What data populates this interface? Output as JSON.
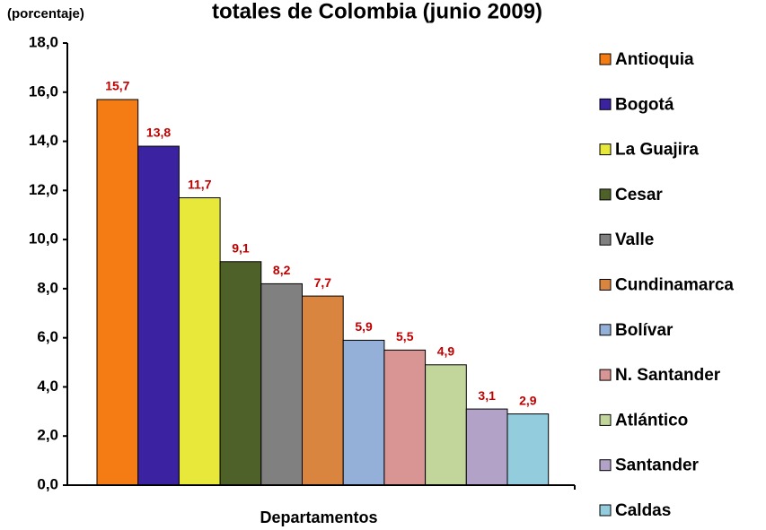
{
  "chart_data": {
    "type": "bar",
    "title": "totales de Colombia (junio 2009)",
    "y_label": "(porcentaje)",
    "x_label": "Departamentos",
    "categories": [
      "Antioquia",
      "Bogotá",
      "La Guajira",
      "Cesar",
      "Valle",
      "Cundinamarca",
      "Bolívar",
      "N. Santander",
      "Atlántico",
      "Santander",
      "Caldas"
    ],
    "values": [
      15.7,
      13.8,
      11.7,
      9.1,
      8.2,
      7.7,
      5.9,
      5.5,
      4.9,
      3.1,
      2.9
    ],
    "value_labels": [
      "15,7",
      "13,8",
      "11,7",
      "9,1",
      "8,2",
      "7,7",
      "5,9",
      "5,5",
      "4,9",
      "3,1",
      "2,9"
    ],
    "colors": [
      "#f57c14",
      "#3a22a0",
      "#e8e83a",
      "#4e6128",
      "#808080",
      "#d9843f",
      "#95b0d8",
      "#d99594",
      "#c2d69b",
      "#b2a2c7",
      "#93cddd"
    ],
    "ylim": [
      0,
      18
    ],
    "yticks": [
      {
        "value": 0,
        "label": "0,0"
      },
      {
        "value": 2,
        "label": "2,0"
      },
      {
        "value": 4,
        "label": "4,0"
      },
      {
        "value": 6,
        "label": "6,0"
      },
      {
        "value": 8,
        "label": "8,0"
      },
      {
        "value": 10,
        "label": "10,0"
      },
      {
        "value": 12,
        "label": "12,0"
      },
      {
        "value": 14,
        "label": "14,0"
      },
      {
        "value": 16,
        "label": "16,0"
      },
      {
        "value": 18,
        "label": "18,0"
      }
    ],
    "legend": "right"
  }
}
